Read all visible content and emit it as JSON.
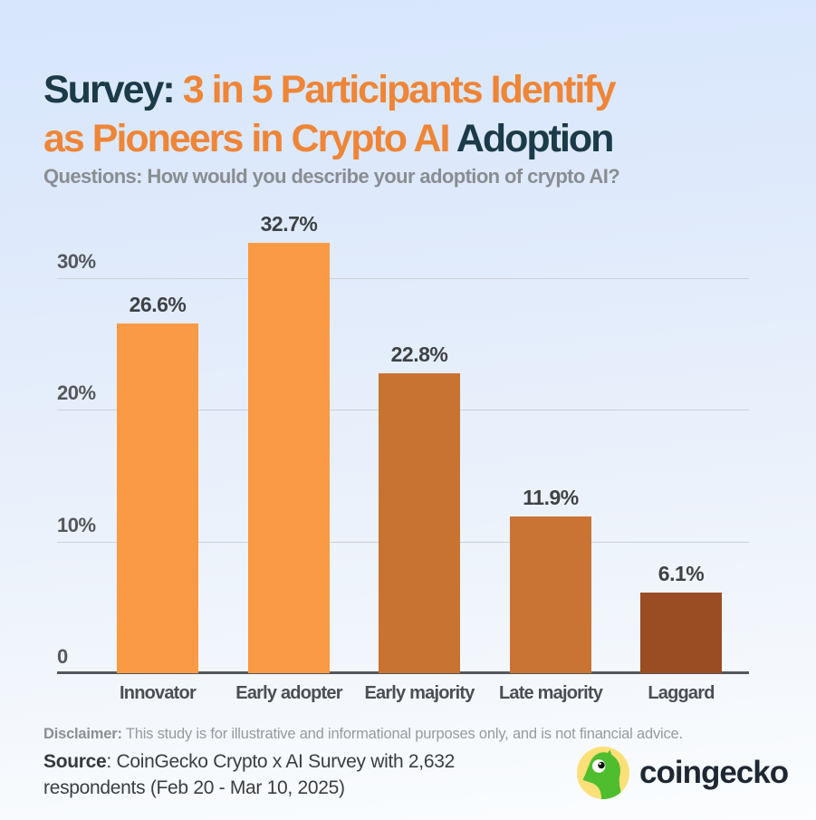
{
  "header": {
    "title_line1_dark": "Survey: ",
    "title_line1_orange": "3 in 5 Participants Identify",
    "title_line2_orange": "as Pioneers in Crypto AI ",
    "title_line2_dark": "Adoption",
    "subtitle": "Questions: How would you describe your adoption of crypto AI?"
  },
  "chart_data": {
    "type": "bar",
    "title": "Survey: 3 in 5 Participants Identify as Pioneers in Crypto AI Adoption",
    "categories": [
      "Innovator",
      "Early adopter",
      "Early majority",
      "Late majority",
      "Laggard"
    ],
    "values": [
      26.6,
      32.7,
      22.8,
      11.9,
      6.1
    ],
    "value_labels": [
      "26.6%",
      "32.7%",
      "22.8%",
      "11.9%",
      "6.1%"
    ],
    "bar_colors": [
      "#fa9a44",
      "#fa9a44",
      "#c87331",
      "#c97434",
      "#9a4c23"
    ],
    "y_ticks": [
      {
        "value": 0,
        "label": "0"
      },
      {
        "value": 10,
        "label": "10%"
      },
      {
        "value": 20,
        "label": "20%"
      },
      {
        "value": 30,
        "label": "30%"
      }
    ],
    "ylim": [
      0,
      34.6
    ],
    "xlabel": "",
    "ylabel": "",
    "grid": true,
    "legend": false
  },
  "footer": {
    "disclaimer_label": "Disclaimer:",
    "disclaimer_text": " This study is for illustrative and informational purposes only, and is not financial advice.",
    "source_label": "Source",
    "source_rest_line1": ": CoinGecko Crypto x AI Survey with 2,632",
    "source_line2": "respondents (Feb 20 - Mar 10, 2025)",
    "logo_text": "coingecko"
  },
  "colors": {
    "title_dark": "#1b3a4a",
    "title_orange": "#ee8537",
    "bar_bright_orange": "#fa9a44",
    "bar_mid_orange": "#c87331",
    "bar_dark_brown": "#9a4c23",
    "gridline": "#cbd0d9",
    "axis": "#54575b",
    "background_top": "#d7e6fc",
    "background_bottom": "#fbfdfe",
    "logo_yellow": "#fbe077",
    "logo_green": "#4fbd2e"
  }
}
